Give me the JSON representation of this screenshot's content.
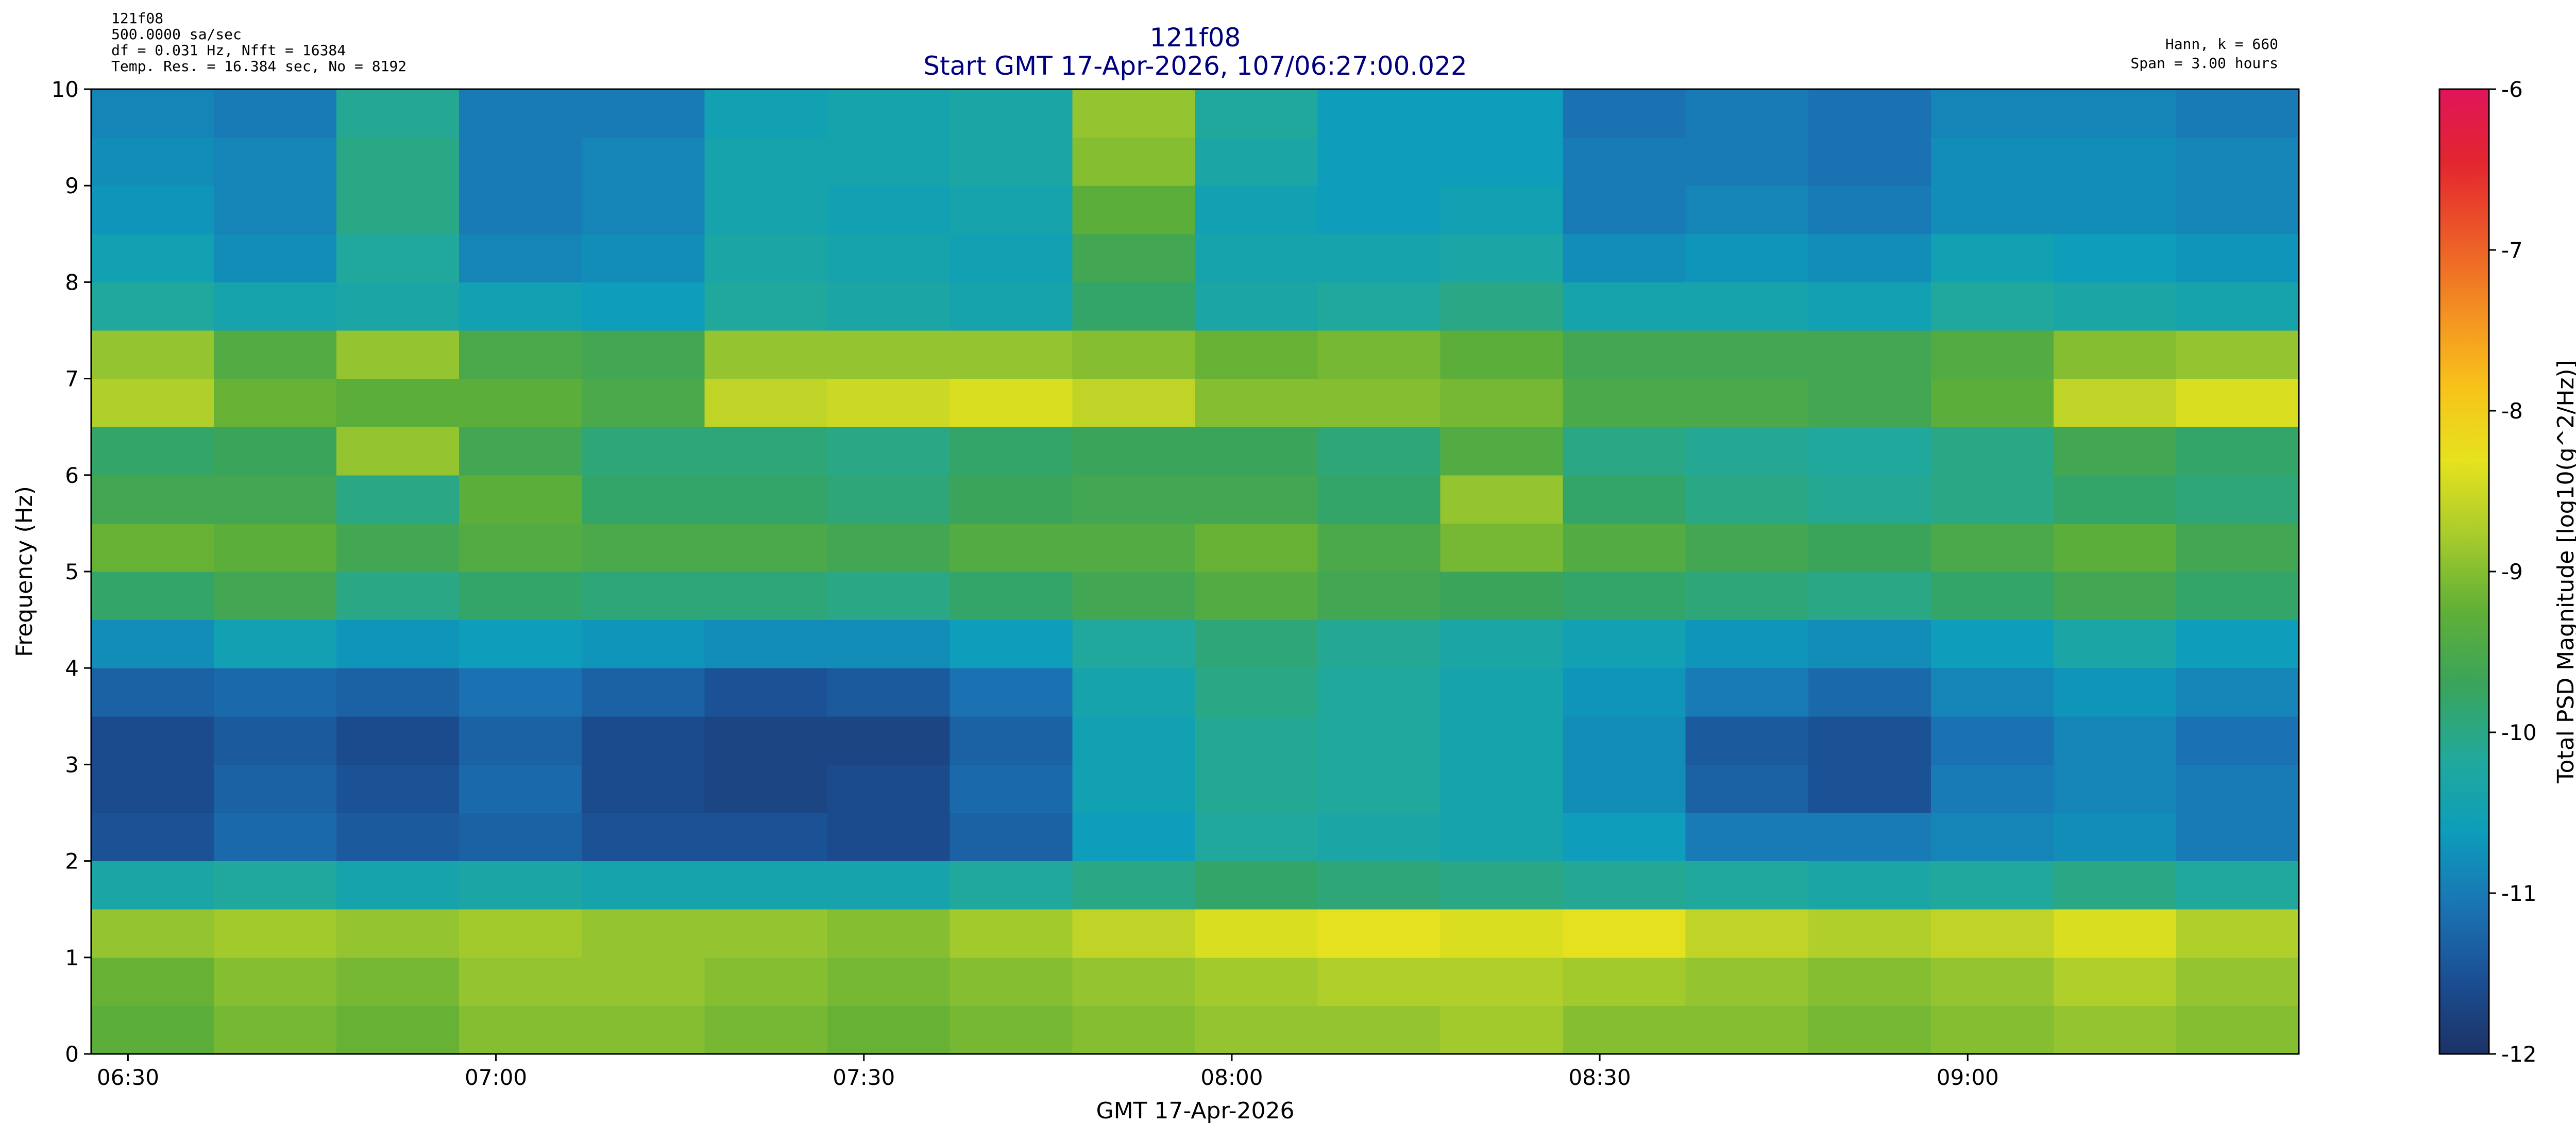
{
  "chart_data": {
    "type": "heatmap",
    "title": "121f08",
    "subtitle": "Start GMT 17-Apr-2026, 107/06:27:00.022",
    "annotations_left": [
      "121f08",
      "500.0000 sa/sec",
      "df = 0.031 Hz,  Nfft = 16384",
      "Temp. Res. = 16.384 sec, No = 8192"
    ],
    "annotations_right": [
      "Hann, k = 660",
      "Span = 3.00 hours"
    ],
    "xlabel": "GMT 17-Apr-2026",
    "ylabel": "Frequency (Hz)",
    "colorbar_label": "Total PSD Magnitude [log10(g^2/Hz)]",
    "xlim": [
      387,
      567
    ],
    "xticks": [
      {
        "value": 390,
        "label": "06:30"
      },
      {
        "value": 420,
        "label": "07:00"
      },
      {
        "value": 450,
        "label": "07:30"
      },
      {
        "value": 480,
        "label": "08:00"
      },
      {
        "value": 510,
        "label": "08:30"
      },
      {
        "value": 540,
        "label": "09:00"
      }
    ],
    "ylim": [
      0,
      10
    ],
    "yticks": [
      0,
      1,
      2,
      3,
      4,
      5,
      6,
      7,
      8,
      9,
      10
    ],
    "clim": [
      -12,
      -6
    ],
    "cticks": [
      -12,
      -11,
      -10,
      -9,
      -8,
      -7,
      -6
    ],
    "colorscale": [
      "#1c3266",
      "#1b4f93",
      "#1a74b4",
      "#0d9dbb",
      "#22a99a",
      "#3aa45a",
      "#62b036",
      "#a8cc2c",
      "#e6e21e",
      "#f8c21a",
      "#f39022",
      "#ec5a28",
      "#e3262e",
      "#e0145a"
    ],
    "x": [
      387,
      397,
      407,
      417,
      427,
      437,
      447,
      457,
      467,
      477,
      487,
      497,
      507,
      517,
      527,
      537,
      547,
      557,
      567
    ],
    "y": [
      0,
      0.5,
      1,
      1.5,
      2,
      2.5,
      3,
      3.5,
      4,
      4.5,
      5,
      5.5,
      6,
      6.5,
      7,
      7.5,
      8,
      8.5,
      9,
      9.5,
      10
    ],
    "z": [
      [
        -9.3,
        -9.1,
        -9.2,
        -9.0,
        -9.0,
        -9.1,
        -9.2,
        -9.1,
        -9.0,
        -8.9,
        -8.9,
        -8.8,
        -9.0,
        -9.0,
        -9.1,
        -9.0,
        -8.9,
        -9.0
      ],
      [
        -9.2,
        -9.0,
        -9.1,
        -8.9,
        -8.9,
        -9.0,
        -9.1,
        -9.0,
        -8.9,
        -8.8,
        -8.7,
        -8.7,
        -8.8,
        -8.9,
        -9.0,
        -8.9,
        -8.7,
        -8.9
      ],
      [
        -8.9,
        -8.8,
        -8.9,
        -8.8,
        -8.9,
        -8.9,
        -9.0,
        -8.8,
        -8.6,
        -8.4,
        -8.3,
        -8.4,
        -8.3,
        -8.6,
        -8.7,
        -8.6,
        -8.4,
        -8.7
      ],
      [
        -10.3,
        -10.2,
        -10.4,
        -10.3,
        -10.4,
        -10.4,
        -10.4,
        -10.2,
        -10.0,
        -9.8,
        -9.9,
        -10.0,
        -10.1,
        -10.2,
        -10.3,
        -10.2,
        -10.0,
        -10.2
      ],
      [
        -11.5,
        -11.2,
        -11.4,
        -11.3,
        -11.5,
        -11.5,
        -11.6,
        -11.3,
        -10.6,
        -10.2,
        -10.3,
        -10.4,
        -10.6,
        -11.0,
        -11.0,
        -10.9,
        -10.8,
        -11.0
      ],
      [
        -11.6,
        -11.3,
        -11.5,
        -11.2,
        -11.6,
        -11.7,
        -11.6,
        -11.2,
        -10.5,
        -10.1,
        -10.2,
        -10.4,
        -10.8,
        -11.3,
        -11.5,
        -11.0,
        -10.9,
        -11.0
      ],
      [
        -11.6,
        -11.4,
        -11.6,
        -11.3,
        -11.6,
        -11.7,
        -11.7,
        -11.3,
        -10.5,
        -10.1,
        -10.2,
        -10.4,
        -10.8,
        -11.4,
        -11.5,
        -11.1,
        -10.9,
        -11.1
      ],
      [
        -11.3,
        -11.2,
        -11.3,
        -11.1,
        -11.3,
        -11.5,
        -11.4,
        -11.1,
        -10.4,
        -10.0,
        -10.2,
        -10.4,
        -10.7,
        -11.0,
        -11.2,
        -10.9,
        -10.7,
        -10.9
      ],
      [
        -10.8,
        -10.5,
        -10.7,
        -10.6,
        -10.7,
        -10.8,
        -10.8,
        -10.6,
        -10.2,
        -9.9,
        -10.1,
        -10.3,
        -10.5,
        -10.7,
        -10.8,
        -10.6,
        -10.3,
        -10.6
      ],
      [
        -9.8,
        -9.6,
        -10.0,
        -9.8,
        -9.9,
        -9.9,
        -10.0,
        -9.8,
        -9.6,
        -9.4,
        -9.6,
        -9.7,
        -9.8,
        -9.9,
        -10.0,
        -9.8,
        -9.6,
        -9.8
      ],
      [
        -9.2,
        -9.3,
        -9.6,
        -9.4,
        -9.5,
        -9.5,
        -9.6,
        -9.4,
        -9.4,
        -9.2,
        -9.5,
        -9.1,
        -9.4,
        -9.6,
        -9.7,
        -9.5,
        -9.3,
        -9.6
      ],
      [
        -9.6,
        -9.6,
        -10.0,
        -9.3,
        -9.8,
        -9.8,
        -9.9,
        -9.7,
        -9.6,
        -9.6,
        -9.8,
        -8.9,
        -9.8,
        -10.0,
        -10.1,
        -10.0,
        -9.8,
        -9.9
      ],
      [
        -9.8,
        -9.7,
        -8.9,
        -9.6,
        -9.9,
        -9.9,
        -10.0,
        -9.8,
        -9.7,
        -9.7,
        -9.9,
        -9.4,
        -10.0,
        -10.1,
        -10.2,
        -10.0,
        -9.6,
        -9.8
      ],
      [
        -8.7,
        -9.2,
        -9.3,
        -9.3,
        -9.5,
        -8.6,
        -8.5,
        -8.4,
        -8.6,
        -9.0,
        -9.0,
        -9.1,
        -9.5,
        -9.5,
        -9.6,
        -9.3,
        -8.6,
        -8.4
      ],
      [
        -8.9,
        -9.4,
        -8.9,
        -9.5,
        -9.6,
        -8.9,
        -8.9,
        -8.9,
        -9.0,
        -9.2,
        -9.1,
        -9.3,
        -9.6,
        -9.6,
        -9.6,
        -9.4,
        -9.0,
        -8.9
      ],
      [
        -10.2,
        -10.4,
        -10.3,
        -10.5,
        -10.6,
        -10.2,
        -10.3,
        -10.4,
        -9.8,
        -10.3,
        -10.2,
        -10.0,
        -10.4,
        -10.4,
        -10.5,
        -10.2,
        -10.3,
        -10.4
      ],
      [
        -10.5,
        -10.8,
        -10.2,
        -10.9,
        -10.8,
        -10.3,
        -10.4,
        -10.5,
        -9.6,
        -10.4,
        -10.4,
        -10.3,
        -10.8,
        -10.7,
        -10.8,
        -10.5,
        -10.6,
        -10.7
      ],
      [
        -10.7,
        -10.9,
        -10.0,
        -11.0,
        -10.9,
        -10.4,
        -10.5,
        -10.4,
        -9.3,
        -10.5,
        -10.6,
        -10.5,
        -11.0,
        -10.9,
        -11.0,
        -10.8,
        -10.8,
        -10.9
      ],
      [
        -10.8,
        -10.9,
        -10.0,
        -11.0,
        -10.9,
        -10.4,
        -10.4,
        -10.3,
        -9.0,
        -10.3,
        -10.6,
        -10.6,
        -11.0,
        -11.0,
        -11.1,
        -10.8,
        -10.8,
        -10.9
      ],
      [
        -10.9,
        -11.0,
        -10.1,
        -11.0,
        -11.0,
        -10.5,
        -10.4,
        -10.3,
        -8.9,
        -10.2,
        -10.6,
        -10.6,
        -11.1,
        -11.0,
        -11.1,
        -10.9,
        -10.9,
        -11.0
      ]
    ]
  }
}
